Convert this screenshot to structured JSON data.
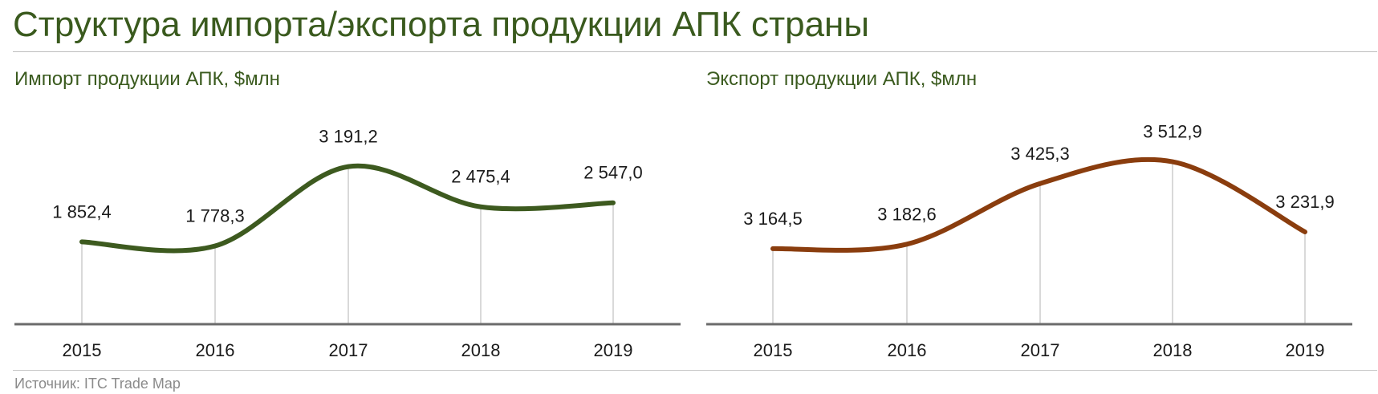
{
  "page": {
    "title": "Структура импорта/экспорта продукции АПК страны",
    "source": "Источник: ITC Trade Map"
  },
  "colors": {
    "title": "#3a5a1e",
    "import_line": "#3d5a1f",
    "export_line": "#8a3d0e",
    "axis": "#6b6b6b",
    "dropline": "#d9d9d9"
  },
  "chart_data": [
    {
      "type": "line",
      "title": "Импорт продукции АПК, $млн",
      "categories": [
        "2015",
        "2016",
        "2017",
        "2018",
        "2019"
      ],
      "values": [
        1852.4,
        1778.3,
        3191.2,
        2475.4,
        2547.0
      ],
      "data_labels": [
        "1 852,4",
        "1 778,3",
        "3 191,2",
        "2 475,4",
        "2 547,0"
      ],
      "xlabel": "",
      "ylabel": "",
      "smooth": true,
      "grid": false,
      "legend": "none"
    },
    {
      "type": "line",
      "title": "Экспорт продукции АПК, $млн",
      "categories": [
        "2015",
        "2016",
        "2017",
        "2018",
        "2019"
      ],
      "values": [
        3164.5,
        3182.6,
        3425.3,
        3512.9,
        3231.9
      ],
      "data_labels": [
        "3 164,5",
        "3 182,6",
        "3 425,3",
        "3 512,9",
        "3 231,9"
      ],
      "xlabel": "",
      "ylabel": "",
      "smooth": true,
      "grid": false,
      "legend": "none"
    }
  ]
}
